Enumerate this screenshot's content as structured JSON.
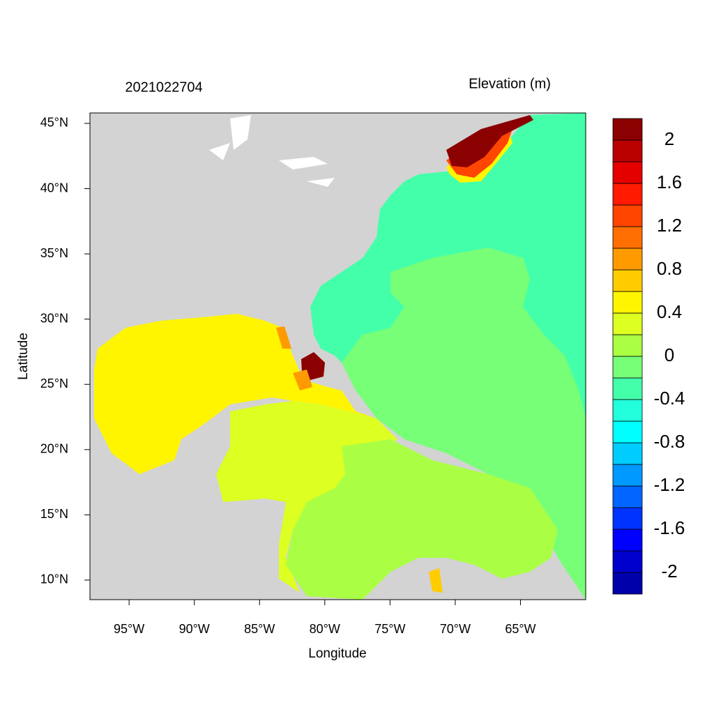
{
  "chart_data": {
    "type": "map",
    "title": "2021022704",
    "legend_title": "Elevation (m)",
    "x_label": "Longitude",
    "y_label": "Latitude",
    "xlim": [
      -98,
      -60
    ],
    "ylim": [
      8.5,
      45.8
    ],
    "xticks": [
      {
        "value": -95,
        "label": "95°W"
      },
      {
        "value": -90,
        "label": "90°W"
      },
      {
        "value": -85,
        "label": "85°W"
      },
      {
        "value": -80,
        "label": "80°W"
      },
      {
        "value": -75,
        "label": "75°W"
      },
      {
        "value": -70,
        "label": "70°W"
      },
      {
        "value": -65,
        "label": "65°W"
      }
    ],
    "yticks": [
      {
        "value": 10,
        "label": "10°N"
      },
      {
        "value": 15,
        "label": "15°N"
      },
      {
        "value": 20,
        "label": "20°N"
      },
      {
        "value": 25,
        "label": "25°N"
      },
      {
        "value": 30,
        "label": "30°N"
      },
      {
        "value": 35,
        "label": "35°N"
      },
      {
        "value": 40,
        "label": "40°N"
      },
      {
        "value": 45,
        "label": "45°N"
      }
    ],
    "colorbar": {
      "levels": [
        -2.2,
        -2,
        -1.8,
        -1.6,
        -1.4,
        -1.2,
        -1,
        -0.8,
        -0.6,
        -0.4,
        -0.2,
        0,
        0.2,
        0.4,
        0.6,
        0.8,
        1,
        1.2,
        1.4,
        1.6,
        1.8,
        2,
        2.2
      ],
      "colors": [
        "#0000aa",
        "#0000cc",
        "#0000ff",
        "#0033ff",
        "#0066ff",
        "#0099ff",
        "#00ccff",
        "#00ffff",
        "#22ffdd",
        "#44ffaa",
        "#77ff77",
        "#aaff44",
        "#ddff22",
        "#fff500",
        "#ffcc00",
        "#ff9a00",
        "#ff6e00",
        "#ff4500",
        "#ff1a00",
        "#e50000",
        "#bb0000",
        "#8b0000"
      ],
      "ticks": [
        -2,
        -1.6,
        -1.2,
        -0.8,
        -0.4,
        0,
        0.4,
        0.8,
        1.2,
        1.6,
        2
      ]
    }
  }
}
